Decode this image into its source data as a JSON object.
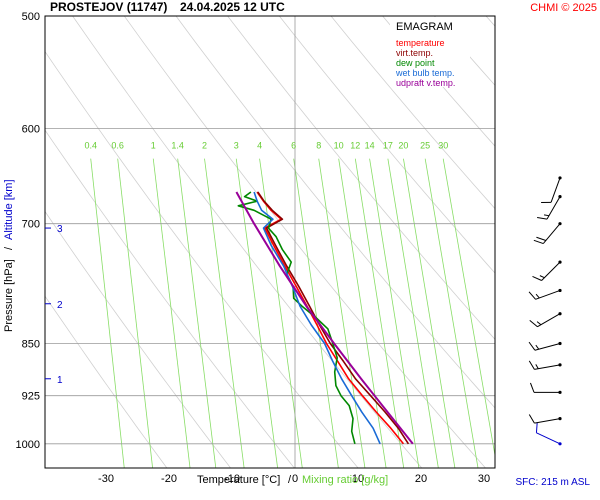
{
  "header": {
    "station": "PROSTEJOV (11747)",
    "datetime": "24.04.2025 12 UTC",
    "credit": "CHMI © 2025"
  },
  "footer": {
    "xlabel_temp": "Temperature [°C]",
    "xlabel_sep": "/",
    "xlabel_mix": "Mixing ratio [g/kg]",
    "sfc": "SFC: 215 m ASL"
  },
  "ylabel": {
    "pressure": "Pressure [hPa]",
    "sep": "/",
    "altitude": "Altitude [km]"
  },
  "legend": {
    "title": "EMAGRAM",
    "items": [
      {
        "label": "temperature",
        "color": "#ff0000"
      },
      {
        "label": "virt.temp.",
        "color": "#8b0000"
      },
      {
        "label": "dew point",
        "color": "#008800"
      },
      {
        "label": "wet bulb temp.",
        "color": "#1a6bd6"
      },
      {
        "label": "udpraft v.temp.",
        "color": "#990099"
      }
    ]
  },
  "chart_data": {
    "type": "line",
    "title": "EMAGRAM",
    "xlabel": "Temperature [°C]",
    "ylabel": "Pressure [hPa]",
    "xlim": [
      -40,
      35
    ],
    "ylim": [
      1040,
      500
    ],
    "y_scale": "log",
    "x_ticks": [
      -30,
      -20,
      -10,
      0,
      10,
      20,
      30
    ],
    "p_ticks": [
      500,
      600,
      700,
      850,
      925,
      1000
    ],
    "altitude_ticks": [
      {
        "km": 1,
        "p": 900
      },
      {
        "km": 2,
        "p": 797
      },
      {
        "km": 3,
        "p": 705
      }
    ],
    "mixing_ratios": [
      0.4,
      0.6,
      1,
      1.4,
      2,
      3,
      4,
      6,
      8,
      10,
      12,
      14,
      17,
      20,
      25,
      30
    ],
    "series": [
      {
        "name": "temperature",
        "color": "#ff0000",
        "p": [
          1000,
          975,
          950,
          925,
          900,
          875,
          850,
          825,
          800,
          775,
          750,
          725,
          705,
          695,
          685,
          675,
          665
        ],
        "t": [
          17.2,
          15.2,
          12.9,
          10.7,
          8.5,
          6.8,
          5.0,
          3.5,
          1.9,
          0.2,
          -1.6,
          -3.4,
          -4.8,
          -2.2,
          -3.8,
          -5.0,
          -6.0
        ]
      },
      {
        "name": "virt.temp.",
        "color": "#8b0000",
        "p": [
          1000,
          975,
          950,
          925,
          900,
          875,
          850,
          825,
          800,
          775,
          750,
          725,
          705,
          695,
          685,
          675,
          665
        ],
        "t": [
          18.0,
          16.4,
          14.3,
          12.0,
          9.6,
          7.7,
          5.6,
          3.9,
          2.3,
          0.6,
          -1.3,
          -3.1,
          -4.5,
          -2.0,
          -3.6,
          -4.9,
          -5.9
        ]
      },
      {
        "name": "dew point",
        "color": "#008800",
        "p": [
          1000,
          980,
          960,
          940,
          925,
          910,
          890,
          870,
          850,
          830,
          815,
          800,
          790,
          775,
          760,
          745,
          730,
          715,
          705,
          695,
          685,
          680,
          675,
          670,
          665
        ],
        "t": [
          9.5,
          9.0,
          9.2,
          8.6,
          7.3,
          6.5,
          6.3,
          6.7,
          6.0,
          5.2,
          3.3,
          1.1,
          -0.2,
          -0.3,
          -1.3,
          -0.6,
          -2.0,
          -3.0,
          -4.2,
          -3.8,
          -6.5,
          -9.0,
          -6.0,
          -8.0,
          -7.0
        ]
      },
      {
        "name": "wet bulb temp.",
        "color": "#1a6bd6",
        "p": [
          1000,
          975,
          950,
          925,
          900,
          875,
          850,
          825,
          800,
          775,
          750,
          725,
          705,
          695,
          685,
          675,
          665
        ],
        "t": [
          13.5,
          12.4,
          10.6,
          9.0,
          7.4,
          6.0,
          4.7,
          2.6,
          0.8,
          -0.4,
          -1.8,
          -3.8,
          -5.0,
          -3.5,
          -5.3,
          -6.0,
          -6.5
        ]
      },
      {
        "name": "udpraft v.temp.",
        "color": "#990099",
        "p": [
          1000,
          950,
          900,
          850,
          800,
          750,
          700,
          665
        ],
        "t": [
          18.7,
          14.7,
          10.5,
          6.2,
          1.8,
          -2.4,
          -6.5,
          -9.3
        ]
      }
    ],
    "wind_barbs": [
      {
        "p": 1000,
        "dir_deg": 295,
        "kt": 10
      },
      {
        "p": 960,
        "dir_deg": 260,
        "kt": 10
      },
      {
        "p": 920,
        "dir_deg": 270,
        "kt": 10
      },
      {
        "p": 880,
        "dir_deg": 260,
        "kt": 15
      },
      {
        "p": 850,
        "dir_deg": 255,
        "kt": 15
      },
      {
        "p": 810,
        "dir_deg": 240,
        "kt": 15
      },
      {
        "p": 780,
        "dir_deg": 250,
        "kt": 15
      },
      {
        "p": 745,
        "dir_deg": 225,
        "kt": 15
      },
      {
        "p": 700,
        "dir_deg": 220,
        "kt": 20
      },
      {
        "p": 670,
        "dir_deg": 210,
        "kt": 15
      },
      {
        "p": 650,
        "dir_deg": 200,
        "kt": 10
      }
    ]
  }
}
